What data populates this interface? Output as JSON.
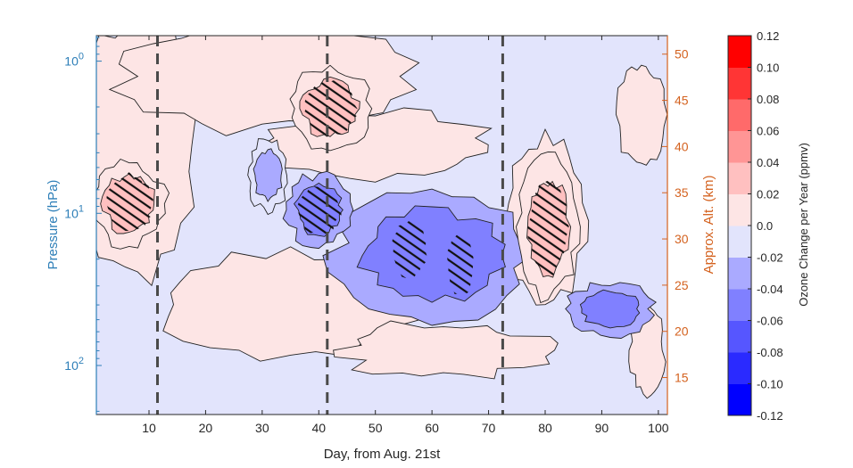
{
  "chart_data": {
    "type": "heatmap",
    "subtype": "filled-contour",
    "title": "",
    "xlabel": "Day, from Aug. 21st",
    "ylabel_left": "Pressure (hPa)",
    "ylabel_right": "Approx. Alt. (km)",
    "colorbar_label": "Ozone Change per Year (ppmv)",
    "xlim": [
      0.7,
      101.6
    ],
    "ylim_pressure_hPa": [
      0.68,
      210
    ],
    "y_scale": "log",
    "ylim_altitude_km": [
      11,
      52
    ],
    "x_ticks": [
      "10",
      "20",
      "30",
      "40",
      "50",
      "60",
      "70",
      "80",
      "90",
      "100"
    ],
    "x_tick_values": [
      10,
      20,
      30,
      40,
      50,
      60,
      70,
      80,
      90,
      100
    ],
    "y_left_ticks": [
      {
        "base": "10",
        "exp": "0",
        "value": 1
      },
      {
        "base": "10",
        "exp": "1",
        "value": 10
      },
      {
        "base": "10",
        "exp": "2",
        "value": 100
      }
    ],
    "y_right_ticks": [
      "50",
      "45",
      "40",
      "35",
      "30",
      "25",
      "20",
      "15"
    ],
    "y_right_tick_values": [
      50,
      45,
      40,
      35,
      30,
      25,
      20,
      15
    ],
    "colorbar": {
      "levels": [
        -0.12,
        -0.1,
        -0.08,
        -0.06,
        -0.04,
        -0.02,
        0.0,
        0.02,
        0.04,
        0.06,
        0.08,
        0.1,
        0.12
      ],
      "tick_labels": [
        "0.12",
        "0.10",
        "0.08",
        "0.06",
        "0.04",
        "0.02",
        "0.0",
        "-0.02",
        "-0.04",
        "-0.06",
        "-0.08",
        "-0.10",
        "-0.12"
      ],
      "colors": [
        "#0000ff",
        "#2a2aff",
        "#5656ff",
        "#8080ff",
        "#aaaaff",
        "#e2e4fc",
        "#fde5e5",
        "#ffc0c0",
        "#ff9595",
        "#ff6a6a",
        "#ff3535",
        "#ff0000"
      ]
    },
    "vertical_markers_day": [
      11.5,
      41.5,
      72.5
    ],
    "regions": [
      {
        "name": "positive-anomaly-lower-strat-early",
        "day_range": [
          1,
          12
        ],
        "pressure_range_hPa": [
          5,
          15
        ],
        "level": 0.02,
        "significant": true
      },
      {
        "name": "positive-anomaly-upper-strat",
        "day_range": [
          36,
          48
        ],
        "pressure_range_hPa": [
          1.2,
          3.5
        ],
        "level": 0.02,
        "significant": true
      },
      {
        "name": "negative-core-day-57",
        "day_range": [
          52,
          60
        ],
        "pressure_range_hPa": [
          10,
          30
        ],
        "level": -0.06,
        "significant": true
      },
      {
        "name": "negative-core-day-65",
        "day_range": [
          62,
          68
        ],
        "pressure_range_hPa": [
          12,
          40
        ],
        "level": -0.06,
        "significant": true
      },
      {
        "name": "negative-band-main",
        "day_range": [
          45,
          75
        ],
        "pressure_range_hPa": [
          8,
          45
        ],
        "level": -0.04,
        "significant": false
      },
      {
        "name": "positive-anomaly-day-80",
        "day_range": [
          76,
          85
        ],
        "pressure_range_hPa": [
          5,
          30
        ],
        "level": 0.02,
        "significant": true
      },
      {
        "name": "negative-anomaly-day-90",
        "day_range": [
          85,
          98
        ],
        "pressure_range_hPa": [
          30,
          60
        ],
        "level": -0.04,
        "significant": false
      },
      {
        "name": "negative-anomaly-day-32",
        "day_range": [
          28,
          34
        ],
        "pressure_range_hPa": [
          3.5,
          9
        ],
        "level": -0.02,
        "significant": false
      },
      {
        "name": "negative-anomaly-day-42",
        "day_range": [
          35,
          45
        ],
        "pressure_range_hPa": [
          6,
          15
        ],
        "level": -0.04,
        "significant": true
      }
    ]
  }
}
